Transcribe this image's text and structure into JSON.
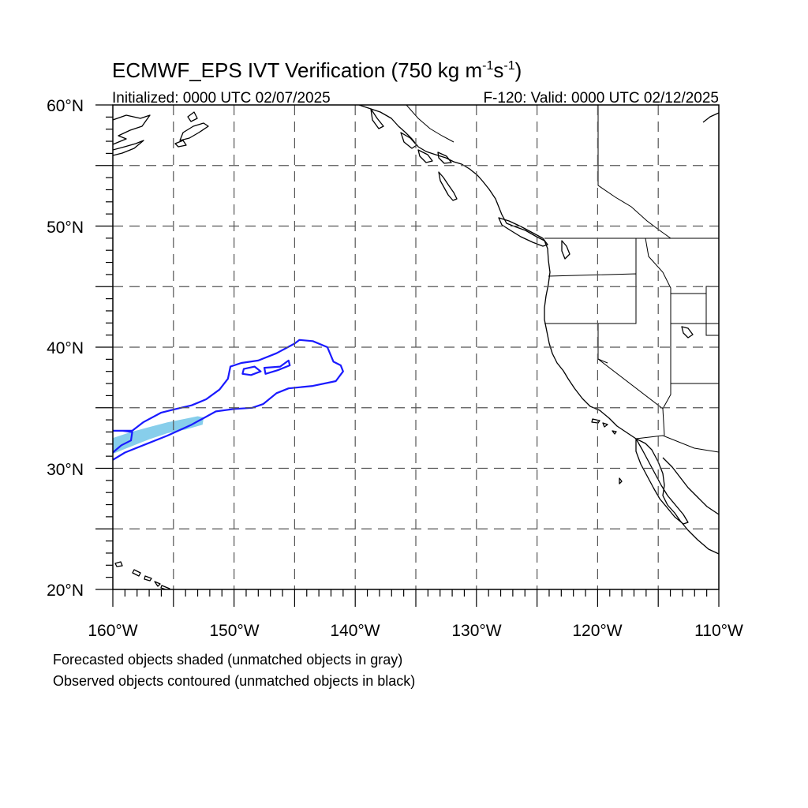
{
  "title": {
    "main": "ECMWF_EPS IVT Verification (750 kg m",
    "exp1": "-1",
    "mid": "s",
    "exp2": "-1",
    "end": ")"
  },
  "init_label": "Initialized: 0000 UTC 02/07/2025",
  "valid_label": "F-120: Valid: 0000 UTC 02/12/2025",
  "lat_labels": [
    "60°N",
    "50°N",
    "40°N",
    "30°N",
    "20°N"
  ],
  "lon_labels": [
    "160°W",
    "150°W",
    "140°W",
    "130°W",
    "120°W",
    "110°W"
  ],
  "notes": [
    "Forecasted objects shaded (unmatched objects in gray)",
    "Observed objects contoured (unmatched objects in black)"
  ],
  "map_extent": {
    "lon_min": -160,
    "lon_max": -110,
    "lat_min": 20,
    "lat_max": 60
  },
  "colors": {
    "forecast_object": "#87ceeb",
    "observed_contour": "#1a1aff",
    "coastline": "#000000",
    "grid": "#555555"
  },
  "objects": {
    "forecast_matched": {
      "label": "Forecasted object (matched)",
      "polygon_lonlat": [
        [
          -160,
          32.5
        ],
        [
          -158.5,
          33.0
        ],
        [
          -157,
          33.4
        ],
        [
          -155.5,
          33.8
        ],
        [
          -154,
          34.1
        ],
        [
          -153,
          34.3
        ],
        [
          -152.5,
          34.2
        ],
        [
          -152.6,
          33.6
        ],
        [
          -154,
          33.2
        ],
        [
          -155.5,
          32.9
        ],
        [
          -157,
          32.4
        ],
        [
          -158.5,
          31.8
        ],
        [
          -160,
          31.2
        ]
      ]
    },
    "observed_matched": {
      "label": "Observed object (matched)",
      "polygon_lonlat": [
        [
          -160,
          31.3
        ],
        [
          -159.3,
          31.9
        ],
        [
          -158.5,
          32.3
        ],
        [
          -158.4,
          33.0
        ],
        [
          -159.2,
          33.1
        ],
        [
          -160,
          33.1
        ],
        [
          -158.4,
          33.1
        ],
        [
          -157.5,
          33.8
        ],
        [
          -156,
          34.6
        ],
        [
          -154.8,
          34.9
        ],
        [
          -153.5,
          35.2
        ],
        [
          -152.3,
          35.7
        ],
        [
          -151.2,
          36.5
        ],
        [
          -150.5,
          37.4
        ],
        [
          -150.3,
          38.4
        ],
        [
          -149.4,
          38.7
        ],
        [
          -148.0,
          38.9
        ],
        [
          -146.5,
          39.5
        ],
        [
          -145,
          40.3
        ],
        [
          -144.6,
          40.6
        ],
        [
          -143.5,
          40.5
        ],
        [
          -142.3,
          40.0
        ],
        [
          -141.8,
          38.8
        ],
        [
          -141.2,
          38.5
        ],
        [
          -141.0,
          38.0
        ],
        [
          -141.6,
          37.2
        ],
        [
          -143.5,
          36.8
        ],
        [
          -145.5,
          36.6
        ],
        [
          -146.5,
          36.2
        ],
        [
          -147.6,
          35.3
        ],
        [
          -148.5,
          35.0
        ],
        [
          -150,
          34.9
        ],
        [
          -151.5,
          34.7
        ],
        [
          -153.5,
          33.6
        ],
        [
          -155.5,
          32.7
        ],
        [
          -157.5,
          31.9
        ],
        [
          -159,
          31.3
        ],
        [
          -160,
          30.7
        ]
      ],
      "holes_lonlat": [
        [
          [
            -147.5,
            38.3
          ],
          [
            -146.2,
            38.4
          ],
          [
            -145.5,
            38.9
          ],
          [
            -145.4,
            38.5
          ],
          [
            -146.4,
            38.1
          ],
          [
            -147.4,
            37.8
          ]
        ],
        [
          [
            -149.2,
            38.2
          ],
          [
            -148.3,
            38.4
          ],
          [
            -147.8,
            38.0
          ],
          [
            -148.6,
            37.7
          ],
          [
            -149.3,
            37.8
          ]
        ]
      ]
    }
  }
}
